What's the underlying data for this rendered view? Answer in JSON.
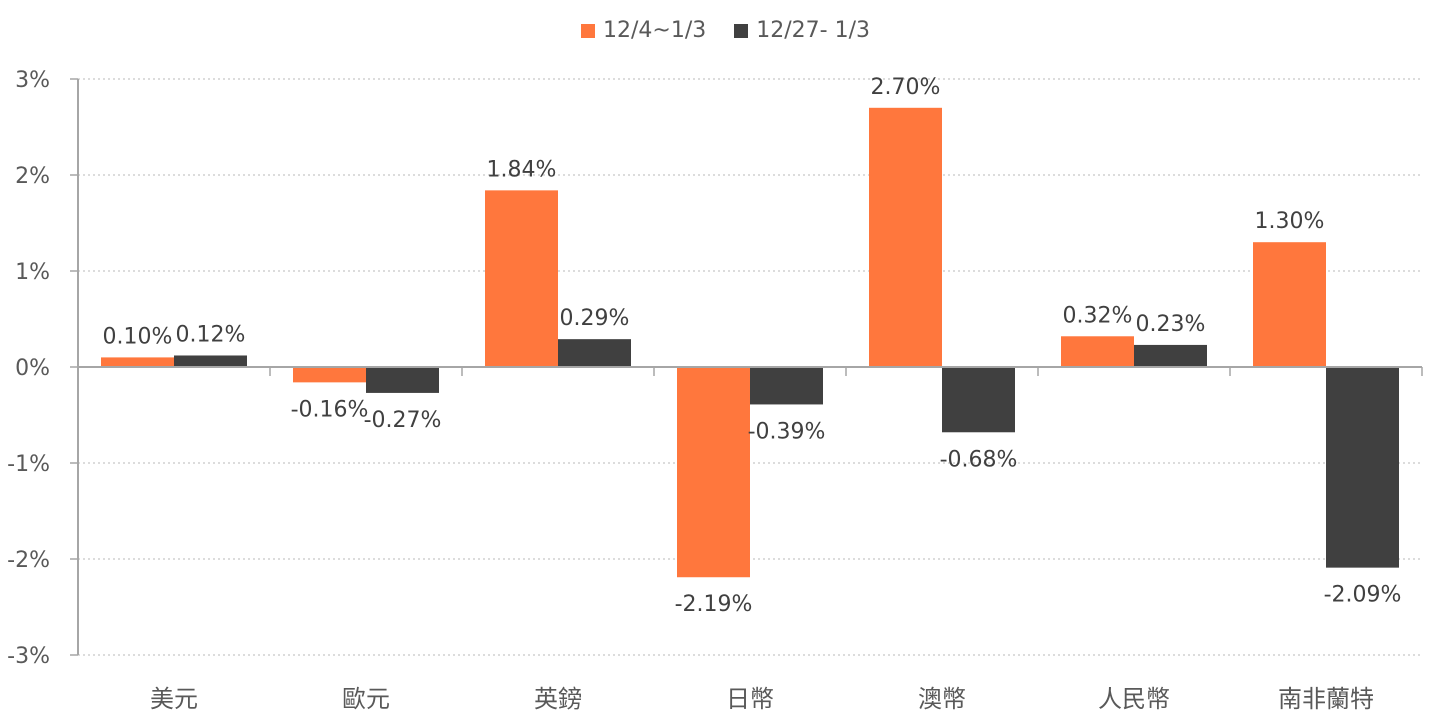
{
  "chart_data": {
    "type": "bar",
    "title": "",
    "xlabel": "",
    "ylabel": "",
    "categories": [
      "美元",
      "歐元",
      "英鎊",
      "日幣",
      "澳幣",
      "人民幣",
      "南非蘭特"
    ],
    "series": [
      {
        "name": "12/4~1/3",
        "color": "#FF773D",
        "values": [
          0.1,
          -0.16,
          1.84,
          -2.19,
          2.7,
          0.32,
          1.3
        ],
        "labels": [
          "0.10%",
          "-0.16%",
          "1.84%",
          "-2.19%",
          "2.70%",
          "0.32%",
          "1.30%"
        ]
      },
      {
        "name": "12/27- 1/3",
        "color": "#404040",
        "values": [
          0.12,
          -0.27,
          0.29,
          -0.39,
          -0.68,
          0.23,
          -2.09
        ],
        "labels": [
          "0.12%",
          "-0.27%",
          "0.29%",
          "-0.39%",
          "-0.68%",
          "0.23%",
          "-2.09%"
        ]
      }
    ],
    "ylim": [
      -3,
      3
    ],
    "yticks": [
      3,
      2,
      1,
      0,
      -1,
      -2,
      -3
    ],
    "ytick_labels": [
      "3%",
      "2%",
      "1%",
      "0%",
      "-1%",
      "-2%",
      "-3%"
    ],
    "grid": "horizontal dotted",
    "legend_position": "top"
  }
}
